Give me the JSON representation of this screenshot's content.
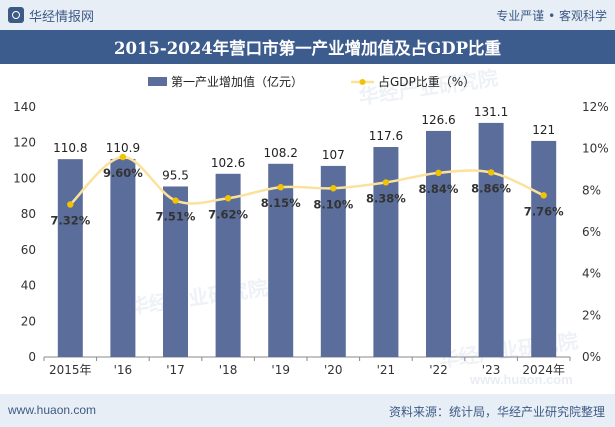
{
  "header": {
    "brand": "华经情报网",
    "tagline": "专业严谨 • 客观科学"
  },
  "title": "2015-2024年营口市第一产业增加值及占GDP比重",
  "footer": {
    "website": "www.huaon.com",
    "source": "资料来源：统计局，华经产业研究院整理"
  },
  "watermark": {
    "text": "华经产业研究院",
    "url": "www.huaon.com"
  },
  "colors": {
    "bar": "#5b6e9b",
    "line": "#fbe29c",
    "marker": "#f3c200",
    "title_bg": "#3c5c8e"
  },
  "chart_data": {
    "type": "bar",
    "categories": [
      "2015年",
      "'16",
      "'17",
      "'18",
      "'19",
      "'20",
      "'21",
      "'22",
      "'23",
      "2024年"
    ],
    "series": [
      {
        "name": "第一产业增加值（亿元）",
        "type": "bar",
        "axis": "left",
        "values": [
          110.8,
          110.9,
          95.5,
          102.6,
          108.2,
          107,
          117.6,
          126.6,
          131.1,
          121
        ],
        "labels": [
          "110.8",
          "110.9",
          "95.5",
          "102.6",
          "108.2",
          "107",
          "117.6",
          "126.6",
          "131.1",
          "121"
        ]
      },
      {
        "name": "占GDP比重（%）",
        "type": "line",
        "axis": "right",
        "values": [
          7.32,
          9.6,
          7.51,
          7.62,
          8.15,
          8.1,
          8.38,
          8.84,
          8.86,
          7.76
        ],
        "labels": [
          "7.32%",
          "9.60%",
          "7.51%",
          "7.62%",
          "8.15%",
          "8.10%",
          "8.38%",
          "8.84%",
          "8.86%",
          "7.76%"
        ]
      }
    ],
    "y_left": {
      "min": 0,
      "max": 140,
      "ticks": [
        "0",
        "20",
        "40",
        "60",
        "80",
        "100",
        "120",
        "140"
      ]
    },
    "y_right": {
      "min": 0,
      "max": 12,
      "ticks": [
        "0%",
        "2%",
        "4%",
        "6%",
        "8%",
        "10%",
        "12%"
      ]
    },
    "legend_position": "top-center",
    "grid": false
  }
}
